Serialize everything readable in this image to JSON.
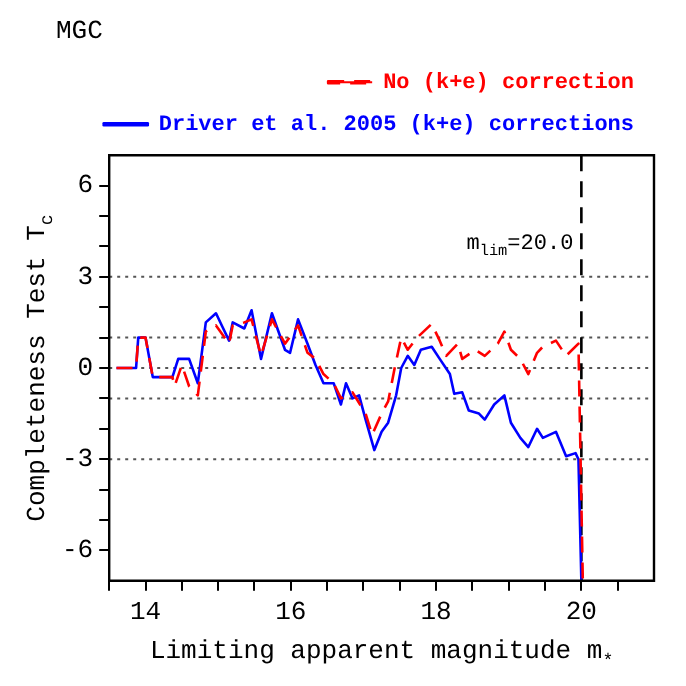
{
  "chart_data": {
    "type": "line",
    "title": "MGC",
    "xlabel": "Limiting apparent magnitude m$_{*}$",
    "ylabel": "Completeness Test T$_{c}$",
    "xlim": [
      13.5,
      21
    ],
    "ylim": [
      -7,
      7
    ],
    "xticks": [
      {
        "value": 13.5,
        "label": null
      },
      14,
      {
        "value": 14.5,
        "label": null
      },
      {
        "value": 15,
        "label": null
      },
      {
        "value": 15.5,
        "label": null
      },
      16,
      {
        "value": 16.5,
        "label": null
      },
      {
        "value": 17,
        "label": null
      },
      {
        "value": 17.5,
        "label": null
      },
      18,
      {
        "value": 18.5,
        "label": null
      },
      {
        "value": 19,
        "label": null
      },
      {
        "value": 19.5,
        "label": null
      },
      20,
      {
        "value": 20.5,
        "label": null
      }
    ],
    "yticks": [
      -6,
      {
        "value": -5,
        "label": null
      },
      {
        "value": -4,
        "label": null
      },
      -3,
      {
        "value": -2,
        "label": null
      },
      {
        "value": -1,
        "label": null
      },
      0,
      {
        "value": 1,
        "label": null
      },
      {
        "value": 2,
        "label": null
      },
      3,
      {
        "value": 4,
        "label": null
      },
      {
        "value": 5,
        "label": null
      },
      6
    ],
    "grid": false,
    "legend": "top right",
    "marker": "none",
    "ref_lines": [
      {
        "axis": "y",
        "value": 3,
        "color": "#555555",
        "line_style": "dotted"
      },
      {
        "axis": "y",
        "value": 1,
        "color": "#555555",
        "line_style": "dotted"
      },
      {
        "axis": "y",
        "value": 0,
        "color": "#555555",
        "line_style": "dotted"
      },
      {
        "axis": "y",
        "value": -1,
        "color": "#555555",
        "line_style": "dotted"
      },
      {
        "axis": "y",
        "value": -3,
        "color": "#555555",
        "line_style": "dotted"
      },
      {
        "axis": "x",
        "value": 20,
        "label": "m$_{lim}$=20.0",
        "color": "#000000",
        "line_style": "dashed"
      }
    ],
    "series": [
      {
        "name": "No (k+e) correction",
        "color": "#ff0000",
        "line_style": "dashed",
        "x": [
          13.6,
          13.87,
          13.9,
          14.0,
          14.1,
          14.37,
          14.4,
          14.5,
          14.6,
          14.72,
          14.83,
          14.97,
          15.15,
          15.2,
          15.36,
          15.46,
          15.59,
          15.74,
          15.92,
          16.1,
          16.23,
          16.34,
          16.45,
          16.59,
          16.69,
          16.85,
          17.03,
          17.12,
          17.25,
          17.34,
          17.43,
          17.52,
          17.61,
          17.74,
          17.94,
          18.05,
          18.14,
          18.3,
          18.36,
          18.54,
          18.67,
          18.85,
          18.94,
          19.03,
          19.16,
          19.27,
          19.39,
          19.47,
          19.65,
          19.79,
          19.96,
          20.02
        ],
        "values": [
          0,
          0,
          1,
          1,
          -0.3,
          -0.3,
          -0.6,
          0.1,
          -0.6,
          -0.9,
          1.2,
          1.4,
          0.8,
          1.4,
          1.5,
          1.6,
          0.4,
          1.6,
          0.8,
          1.4,
          0.5,
          0.3,
          -0.2,
          -0.5,
          -1.0,
          -0.8,
          -1.5,
          -2.2,
          -1.5,
          -1.1,
          0,
          1.0,
          0.6,
          1.0,
          1.45,
          0.9,
          0.4,
          0.8,
          0.3,
          0.6,
          0.4,
          0.8,
          1.2,
          0.6,
          0.3,
          -0.2,
          0.5,
          0.7,
          0.9,
          0.4,
          0.8,
          -7
        ]
      },
      {
        "name": "Driver et al. 2005 (k+e) corrections",
        "color": "#0000ff",
        "line_style": "solid",
        "x": [
          13.6,
          13.87,
          13.9,
          14.0,
          14.1,
          14.37,
          14.45,
          14.6,
          14.72,
          14.83,
          14.97,
          15.05,
          15.15,
          15.2,
          15.36,
          15.46,
          15.59,
          15.74,
          15.92,
          15.99,
          16.1,
          16.23,
          16.34,
          16.45,
          16.59,
          16.69,
          16.76,
          16.85,
          16.94,
          17.03,
          17.15,
          17.25,
          17.34,
          17.45,
          17.52,
          17.61,
          17.7,
          17.79,
          17.94,
          18.05,
          18.19,
          18.25,
          18.36,
          18.45,
          18.59,
          18.67,
          18.8,
          18.94,
          19.03,
          19.16,
          19.27,
          19.39,
          19.47,
          19.65,
          19.79,
          19.92,
          19.96,
          20.0
        ],
        "values": [
          0,
          0,
          1,
          1,
          -0.3,
          -0.3,
          0.3,
          0.3,
          -0.5,
          1.5,
          1.8,
          1.4,
          0.9,
          1.5,
          1.3,
          1.9,
          0.3,
          1.8,
          0.6,
          0.5,
          1.6,
          0.8,
          0.1,
          -0.5,
          -0.5,
          -1.2,
          -0.5,
          -1.0,
          -0.9,
          -1.7,
          -2.7,
          -2.1,
          -1.8,
          -0.9,
          0,
          0.4,
          0.1,
          0.6,
          0.7,
          0.3,
          -0.2,
          -0.85,
          -0.8,
          -1.4,
          -1.5,
          -1.7,
          -1.2,
          -0.9,
          -1.8,
          -2.3,
          -2.6,
          -2.0,
          -2.3,
          -2.1,
          -2.9,
          -2.8,
          -3.0,
          -7
        ]
      }
    ]
  }
}
